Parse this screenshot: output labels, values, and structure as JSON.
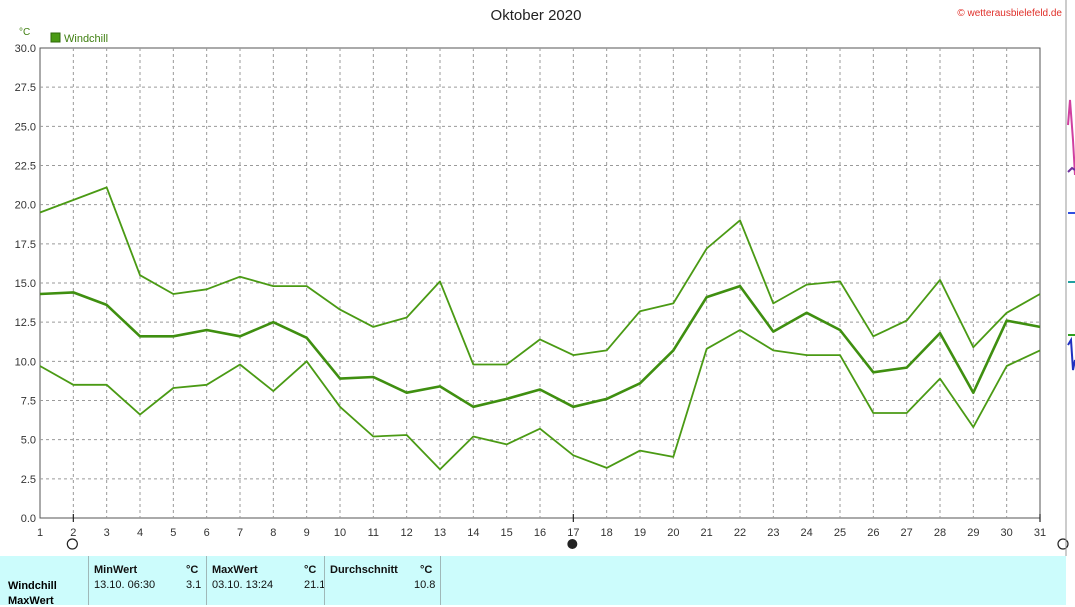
{
  "chart_data": {
    "type": "line",
    "title": "Oktober 2020",
    "ylabel": "°C",
    "ylim": [
      0,
      30
    ],
    "yticks": [
      "0.0",
      "2.5",
      "5.0",
      "7.5",
      "10.0",
      "12.5",
      "15.0",
      "17.5",
      "20.0",
      "22.5",
      "25.0",
      "27.5",
      "30.0"
    ],
    "x": [
      1,
      2,
      3,
      4,
      5,
      6,
      7,
      8,
      9,
      10,
      11,
      12,
      13,
      14,
      15,
      16,
      17,
      18,
      19,
      20,
      21,
      22,
      23,
      24,
      25,
      26,
      27,
      28,
      29,
      30,
      31
    ],
    "grid": true,
    "legend": [
      "Windchill"
    ],
    "series": [
      {
        "name": "Windchill",
        "values": [
          19.5,
          20.3,
          21.1,
          15.5,
          14.3,
          14.6,
          15.4,
          14.8,
          14.8,
          13.3,
          12.2,
          12.8,
          15.1,
          9.8,
          9.8,
          11.4,
          10.4,
          10.7,
          13.2,
          13.7,
          17.2,
          19.0,
          13.7,
          14.9,
          15.1,
          11.6,
          12.6,
          15.2,
          10.9,
          13.1,
          14.3
        ]
      },
      {
        "name": "Windchill",
        "values": [
          14.3,
          14.4,
          13.6,
          11.6,
          11.6,
          12.0,
          11.6,
          12.5,
          11.5,
          8.9,
          9.0,
          8.0,
          8.4,
          7.1,
          7.6,
          8.2,
          7.1,
          7.6,
          8.6,
          10.7,
          14.1,
          14.8,
          11.9,
          13.1,
          12.0,
          9.3,
          9.6,
          11.8,
          8.0,
          12.6,
          12.2
        ]
      },
      {
        "name": "Windchill",
        "values": [
          9.7,
          8.5,
          8.5,
          6.6,
          8.3,
          8.5,
          9.8,
          8.1,
          10.0,
          7.1,
          5.2,
          5.3,
          3.1,
          5.2,
          4.7,
          5.7,
          4.0,
          3.2,
          4.3,
          3.9,
          10.8,
          12.0,
          10.7,
          10.4,
          10.4,
          6.7,
          6.7,
          8.9,
          5.8,
          9.7,
          10.7
        ]
      }
    ]
  },
  "copyright": "© wetterausbielefeld.de",
  "stats": {
    "row_label": "Windchill",
    "row_label_2": "MaxWert",
    "min_header": "MinWert",
    "min_unit": "°C",
    "min_time": "13.10.  06:30",
    "min_value": "3.1",
    "max_header": "MaxWert",
    "max_unit": "°C",
    "max_time": "03.10.  13:24",
    "max_value": "21.1",
    "avg_header": "Durchschnitt",
    "avg_unit": "°C",
    "avg_value": "10.8"
  },
  "colors": {
    "series": "#4a9a14",
    "mid_series": "#3f8f10",
    "stats_bg": "#ccfcfc"
  }
}
